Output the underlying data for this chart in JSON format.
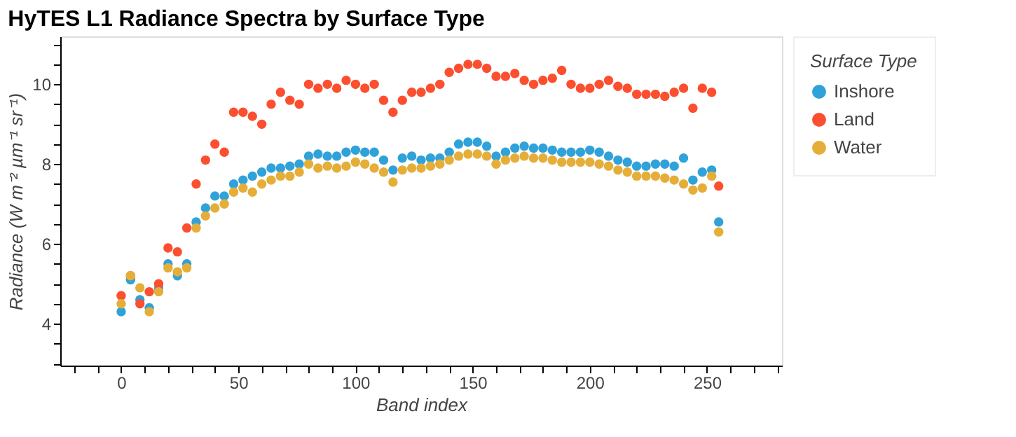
{
  "chart_data": {
    "type": "scatter",
    "title": "HyTES L1 Radiance Spectra by Surface Type",
    "xlabel": "Band index",
    "ylabel": "Radiance (W m⁻² µm⁻¹ sr⁻¹)",
    "legend_title": "Surface Type",
    "legend": "right",
    "marker": "circle",
    "grid": false,
    "x": [
      0,
      4,
      8,
      12,
      16,
      20,
      24,
      28,
      32,
      36,
      40,
      44,
      48,
      52,
      56,
      60,
      64,
      68,
      72,
      76,
      80,
      84,
      88,
      92,
      96,
      100,
      104,
      108,
      112,
      116,
      120,
      124,
      128,
      132,
      136,
      140,
      144,
      148,
      152,
      156,
      160,
      164,
      168,
      172,
      176,
      180,
      184,
      188,
      192,
      196,
      200,
      204,
      208,
      212,
      216,
      220,
      224,
      228,
      232,
      236,
      240,
      244,
      248,
      252,
      255
    ],
    "series": [
      {
        "name": "Inshore",
        "color": "#30a2da",
        "values": [
          4.3,
          5.1,
          4.6,
          4.4,
          4.9,
          5.5,
          5.2,
          5.5,
          6.55,
          6.9,
          7.2,
          7.2,
          7.5,
          7.6,
          7.7,
          7.8,
          7.9,
          7.9,
          7.95,
          8.0,
          8.2,
          8.25,
          8.2,
          8.2,
          8.3,
          8.35,
          8.3,
          8.3,
          8.1,
          7.85,
          8.15,
          8.2,
          8.1,
          8.15,
          8.15,
          8.3,
          8.5,
          8.55,
          8.55,
          8.45,
          8.2,
          8.3,
          8.4,
          8.45,
          8.4,
          8.4,
          8.35,
          8.3,
          8.3,
          8.3,
          8.35,
          8.3,
          8.2,
          8.1,
          8.05,
          7.95,
          7.95,
          8.0,
          8.0,
          7.95,
          8.15,
          7.6,
          7.8,
          7.85,
          6.55
        ]
      },
      {
        "name": "Land",
        "color": "#fc4f30",
        "values": [
          4.7,
          5.2,
          4.5,
          4.8,
          5.0,
          5.9,
          5.8,
          6.4,
          7.5,
          8.1,
          8.5,
          8.3,
          9.3,
          9.3,
          9.2,
          9.0,
          9.5,
          9.8,
          9.6,
          9.5,
          10.0,
          9.9,
          10.0,
          9.9,
          10.1,
          10.0,
          9.9,
          10.0,
          9.6,
          9.3,
          9.6,
          9.8,
          9.8,
          9.9,
          10.0,
          10.3,
          10.4,
          10.5,
          10.5,
          10.4,
          10.2,
          10.2,
          10.27,
          10.1,
          10.0,
          10.1,
          10.15,
          10.35,
          10.0,
          9.9,
          9.9,
          10.0,
          10.1,
          9.95,
          9.9,
          9.75,
          9.75,
          9.75,
          9.7,
          9.8,
          9.9,
          9.4,
          9.9,
          9.8,
          7.45
        ]
      },
      {
        "name": "Water",
        "color": "#e5ae38",
        "values": [
          4.5,
          5.2,
          4.9,
          4.3,
          4.8,
          5.4,
          5.3,
          5.4,
          6.4,
          6.7,
          6.9,
          7.0,
          7.3,
          7.4,
          7.3,
          7.5,
          7.6,
          7.7,
          7.7,
          7.8,
          8.0,
          7.9,
          7.95,
          7.9,
          7.95,
          8.05,
          8.0,
          7.9,
          7.8,
          7.55,
          7.85,
          7.9,
          7.9,
          7.95,
          8.0,
          8.1,
          8.2,
          8.25,
          8.25,
          8.2,
          8.0,
          8.1,
          8.15,
          8.2,
          8.15,
          8.15,
          8.1,
          8.05,
          8.05,
          8.05,
          8.05,
          8.0,
          7.95,
          7.85,
          7.8,
          7.7,
          7.7,
          7.7,
          7.65,
          7.6,
          7.5,
          7.35,
          7.4,
          7.7,
          6.3
        ]
      }
    ],
    "xlim": [
      -26,
      282
    ],
    "xticks": [
      {
        "value": -20,
        "label": null
      },
      {
        "value": -10,
        "label": null
      },
      0,
      {
        "value": 10,
        "label": null
      },
      {
        "value": 20,
        "label": null
      },
      {
        "value": 30,
        "label": null
      },
      {
        "value": 40,
        "label": null
      },
      50,
      {
        "value": 60,
        "label": null
      },
      {
        "value": 70,
        "label": null
      },
      {
        "value": 80,
        "label": null
      },
      {
        "value": 90,
        "label": null
      },
      100,
      {
        "value": 110,
        "label": null
      },
      {
        "value": 120,
        "label": null
      },
      {
        "value": 130,
        "label": null
      },
      {
        "value": 140,
        "label": null
      },
      150,
      {
        "value": 160,
        "label": null
      },
      {
        "value": 170,
        "label": null
      },
      {
        "value": 180,
        "label": null
      },
      {
        "value": 190,
        "label": null
      },
      200,
      {
        "value": 210,
        "label": null
      },
      {
        "value": 220,
        "label": null
      },
      {
        "value": 230,
        "label": null
      },
      {
        "value": 240,
        "label": null
      },
      250,
      {
        "value": 260,
        "label": null
      },
      {
        "value": 270,
        "label": null
      },
      {
        "value": 280,
        "label": null
      }
    ],
    "ylim": [
      2.95,
      11.2
    ],
    "yticks": [
      {
        "value": 3,
        "label": null
      },
      {
        "value": 3.5,
        "label": null
      },
      4,
      {
        "value": 4.5,
        "label": null
      },
      {
        "value": 5,
        "label": null
      },
      {
        "value": 5.5,
        "label": null
      },
      6,
      {
        "value": 6.5,
        "label": null
      },
      {
        "value": 7,
        "label": null
      },
      {
        "value": 7.5,
        "label": null
      },
      8,
      {
        "value": 8.5,
        "label": null
      },
      {
        "value": 9,
        "label": null
      },
      {
        "value": 9.5,
        "label": null
      },
      10,
      {
        "value": 10.5,
        "label": null
      },
      {
        "value": 11,
        "label": null
      }
    ]
  }
}
